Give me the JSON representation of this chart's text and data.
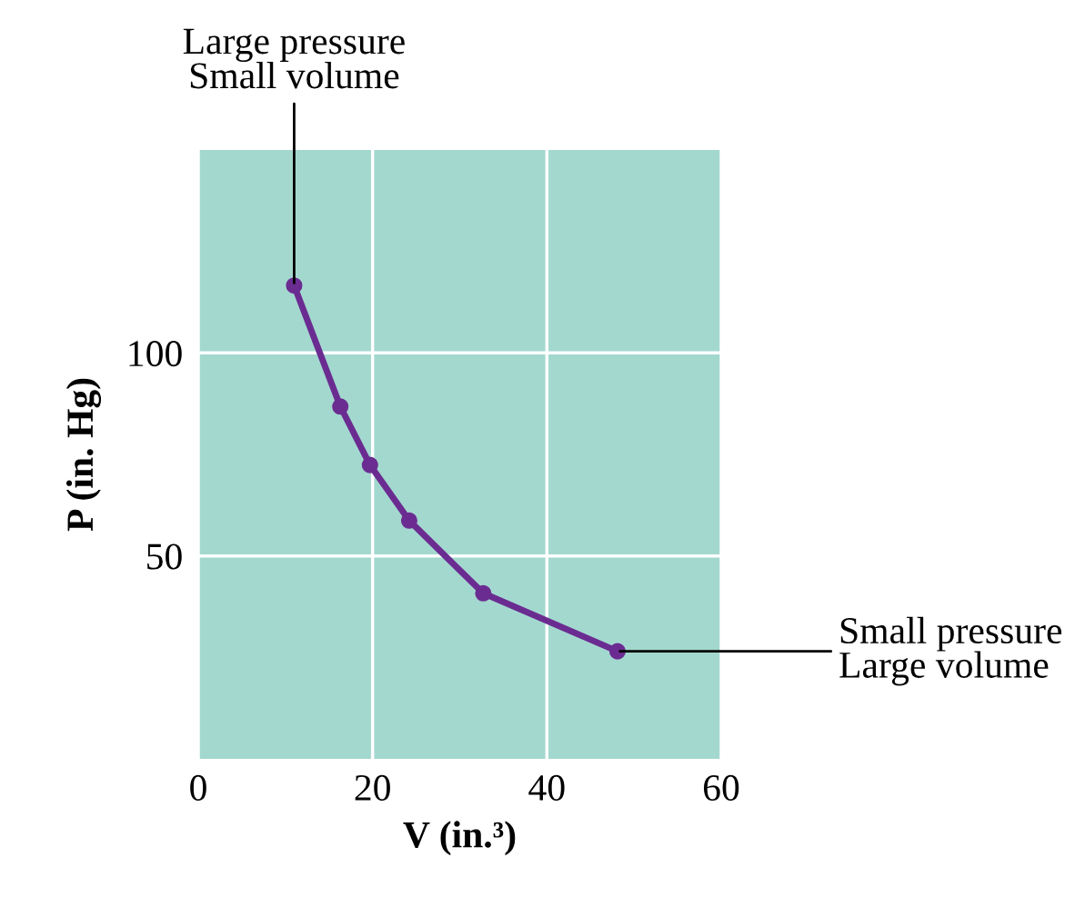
{
  "chart_data": {
    "type": "line",
    "xlabel": "V (in.³)",
    "ylabel": "P (in. Hg)",
    "series": [
      {
        "color": "#6b2c91",
        "x": [
          11,
          16.3,
          19.7,
          24.2,
          32.7,
          48.1
        ],
        "values": [
          116.6,
          86.8,
          72.4,
          58.7,
          40.8,
          26.5
        ]
      }
    ],
    "xlim": [
      0,
      60
    ],
    "ylim": [
      0,
      150
    ],
    "xticks": [
      0,
      20,
      40,
      60
    ],
    "yticks": [
      50,
      100
    ],
    "grid": true,
    "marker": "circle",
    "line_style": "solid",
    "legend": false,
    "annotations": [
      {
        "text": "Large pressure\nSmall volume",
        "x": 11,
        "y": 116.6
      },
      {
        "text": "Small pressure\nLarge volume",
        "x": 48.1,
        "y": 26.5
      }
    ]
  }
}
